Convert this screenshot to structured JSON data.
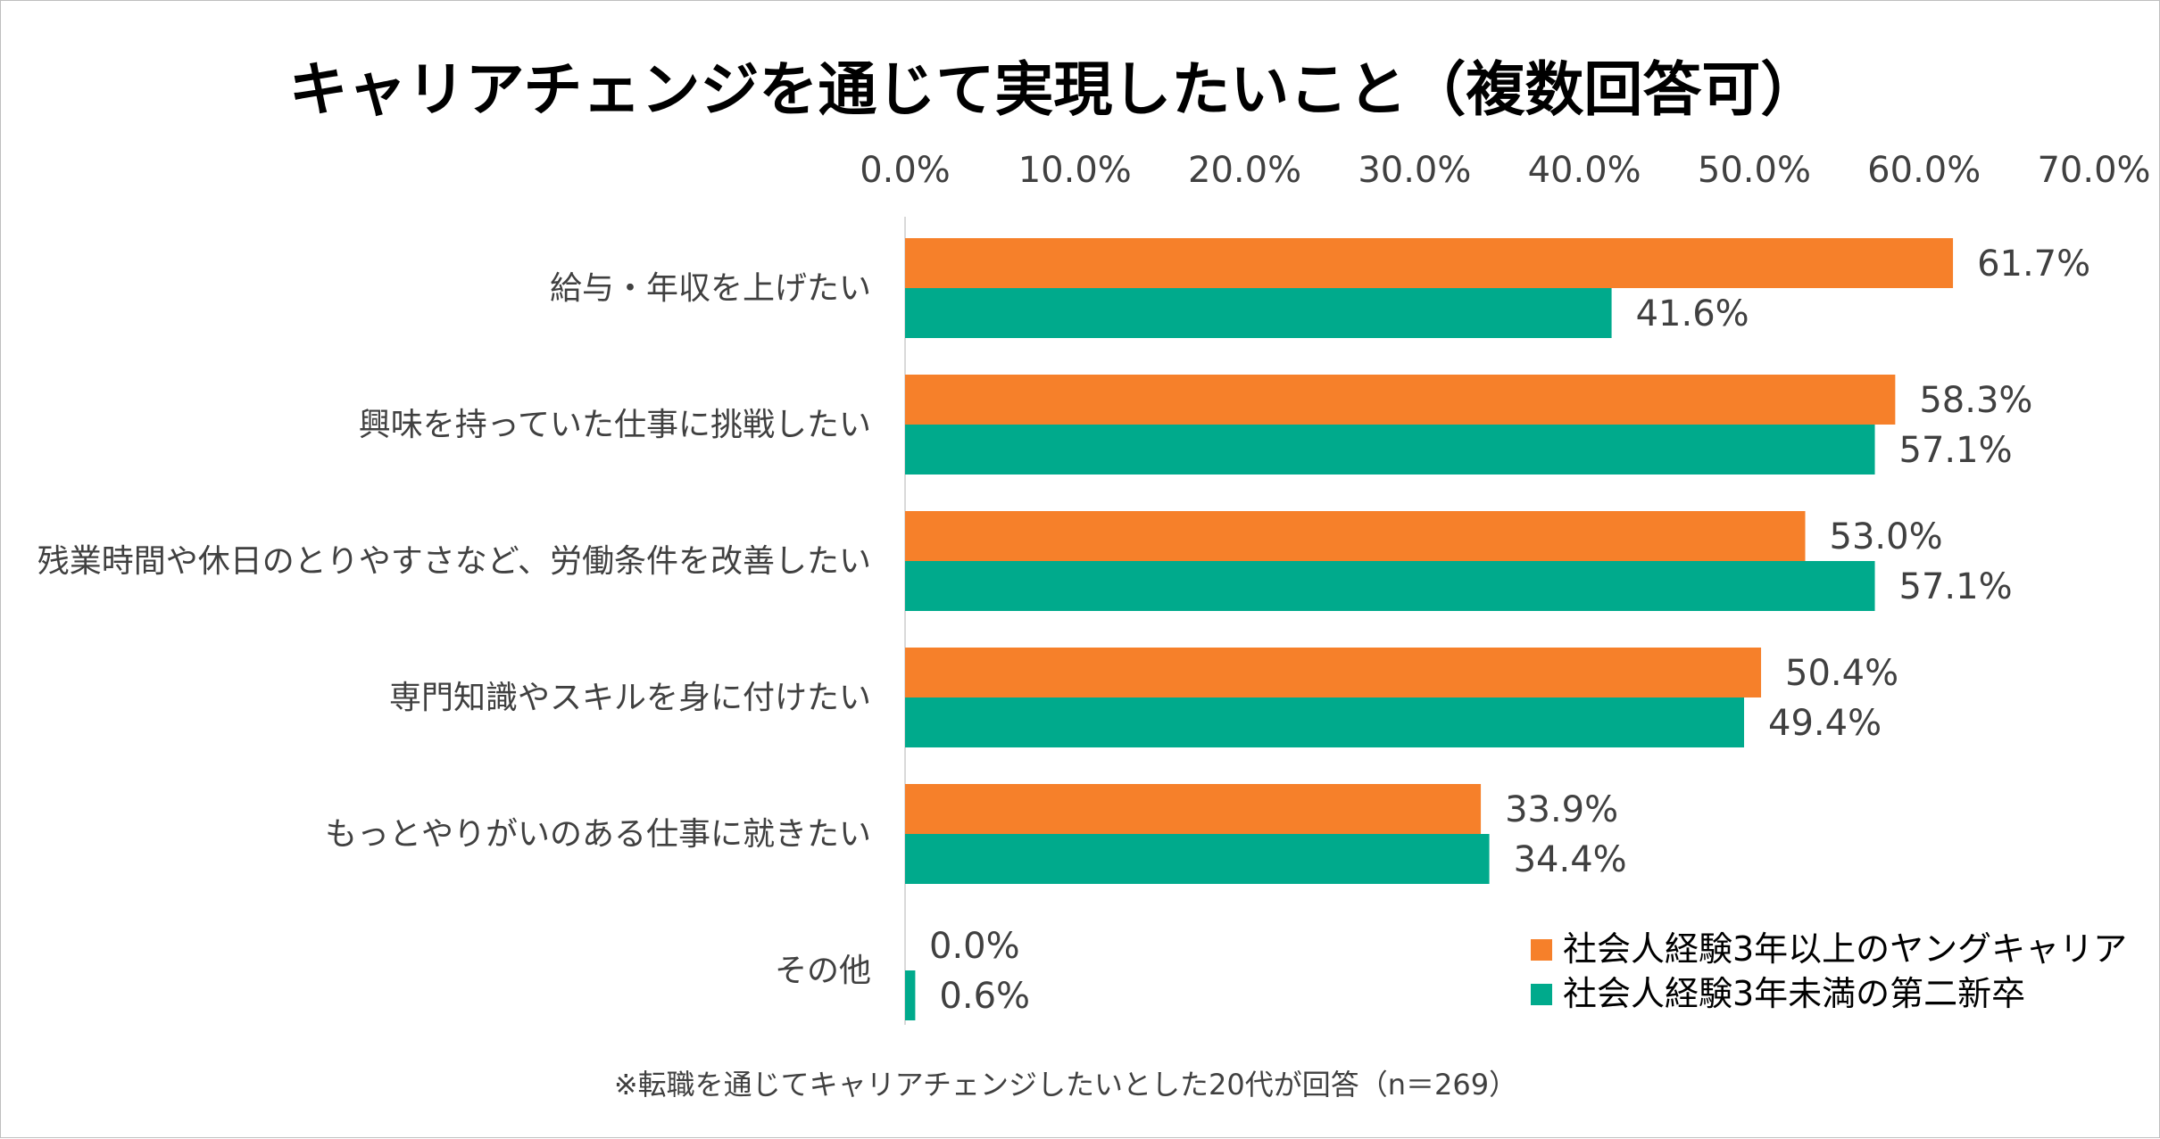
{
  "chart_data": {
    "type": "bar",
    "orientation": "horizontal",
    "title": "キャリアチェンジを通じて実現したいこと（複数回答可）",
    "categories": [
      "給与・年収を上げたい",
      "興味を持っていた仕事に挑戦したい",
      "残業時間や休日のとりやすさなど、労働条件を改善したい",
      "専門知識やスキルを身に付けたい",
      "もっとやりがいのある仕事に就きたい",
      "その他"
    ],
    "series": [
      {
        "name": "社会人経験3年以上のヤングキャリア",
        "color": "#f6802a",
        "values": [
          61.7,
          58.3,
          53.0,
          50.4,
          33.9,
          0.0
        ],
        "labels": [
          "61.7%",
          "58.3%",
          "53.0%",
          "50.4%",
          "33.9%",
          "0.0%"
        ]
      },
      {
        "name": "社会人経験3年未満の第二新卒",
        "color": "#00aa8c",
        "values": [
          41.6,
          57.1,
          57.1,
          49.4,
          34.4,
          0.6
        ],
        "labels": [
          "41.6%",
          "57.1%",
          "57.1%",
          "49.4%",
          "34.4%",
          "0.6%"
        ]
      }
    ],
    "xlim": [
      0,
      70
    ],
    "ticks": [
      0,
      10,
      20,
      30,
      40,
      50,
      60,
      70
    ],
    "tick_labels": [
      "0.0%",
      "10.0%",
      "20.0%",
      "30.0%",
      "40.0%",
      "50.0%",
      "60.0%",
      "70.0%"
    ],
    "axis_position": "top",
    "grid": false,
    "legend_position": "bottom-right",
    "footnote": "※転職を通じてキャリアチェンジしたいとした20代が回答（n＝269）"
  }
}
